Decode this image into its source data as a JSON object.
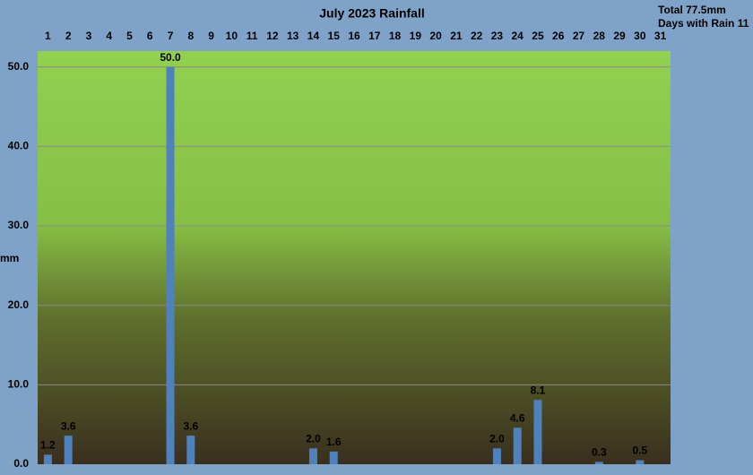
{
  "chart_data": {
    "type": "bar",
    "title": "July 2023 Rainfall",
    "notes": [
      "Total 77.5mm",
      "Days with Rain 11"
    ],
    "y_label": "mm",
    "categories": [
      "1",
      "2",
      "3",
      "4",
      "5",
      "6",
      "7",
      "8",
      "9",
      "10",
      "11",
      "12",
      "13",
      "14",
      "15",
      "16",
      "17",
      "18",
      "19",
      "20",
      "21",
      "22",
      "23",
      "24",
      "25",
      "26",
      "27",
      "28",
      "29",
      "30",
      "31"
    ],
    "values": [
      1.2,
      3.6,
      0,
      0,
      0,
      0,
      50,
      3.6,
      0,
      0,
      0,
      0,
      0,
      2,
      1.6,
      0,
      0,
      0,
      0,
      0,
      0,
      0,
      2,
      4.6,
      8.1,
      0,
      0,
      0.3,
      0,
      0.5,
      0
    ],
    "value_labels": [
      "1.2",
      "3.6",
      null,
      null,
      null,
      null,
      "50.0",
      "3.6",
      null,
      null,
      null,
      null,
      null,
      "2.0",
      "1.6",
      null,
      null,
      null,
      null,
      null,
      null,
      null,
      "2.0",
      "4.6",
      "8.1",
      null,
      null,
      "0.3",
      null,
      "0.5",
      null
    ],
    "color": "#4f81bd",
    "ylim": [
      0,
      52
    ],
    "yticks": [
      {
        "value": 0,
        "label": "0.0"
      },
      {
        "value": 10,
        "label": "10.0"
      },
      {
        "value": 20,
        "label": "20.0"
      },
      {
        "value": 30,
        "label": "30.0"
      },
      {
        "value": 40,
        "label": "40.0"
      },
      {
        "value": 50,
        "label": "50.0"
      }
    ],
    "grid": true
  }
}
